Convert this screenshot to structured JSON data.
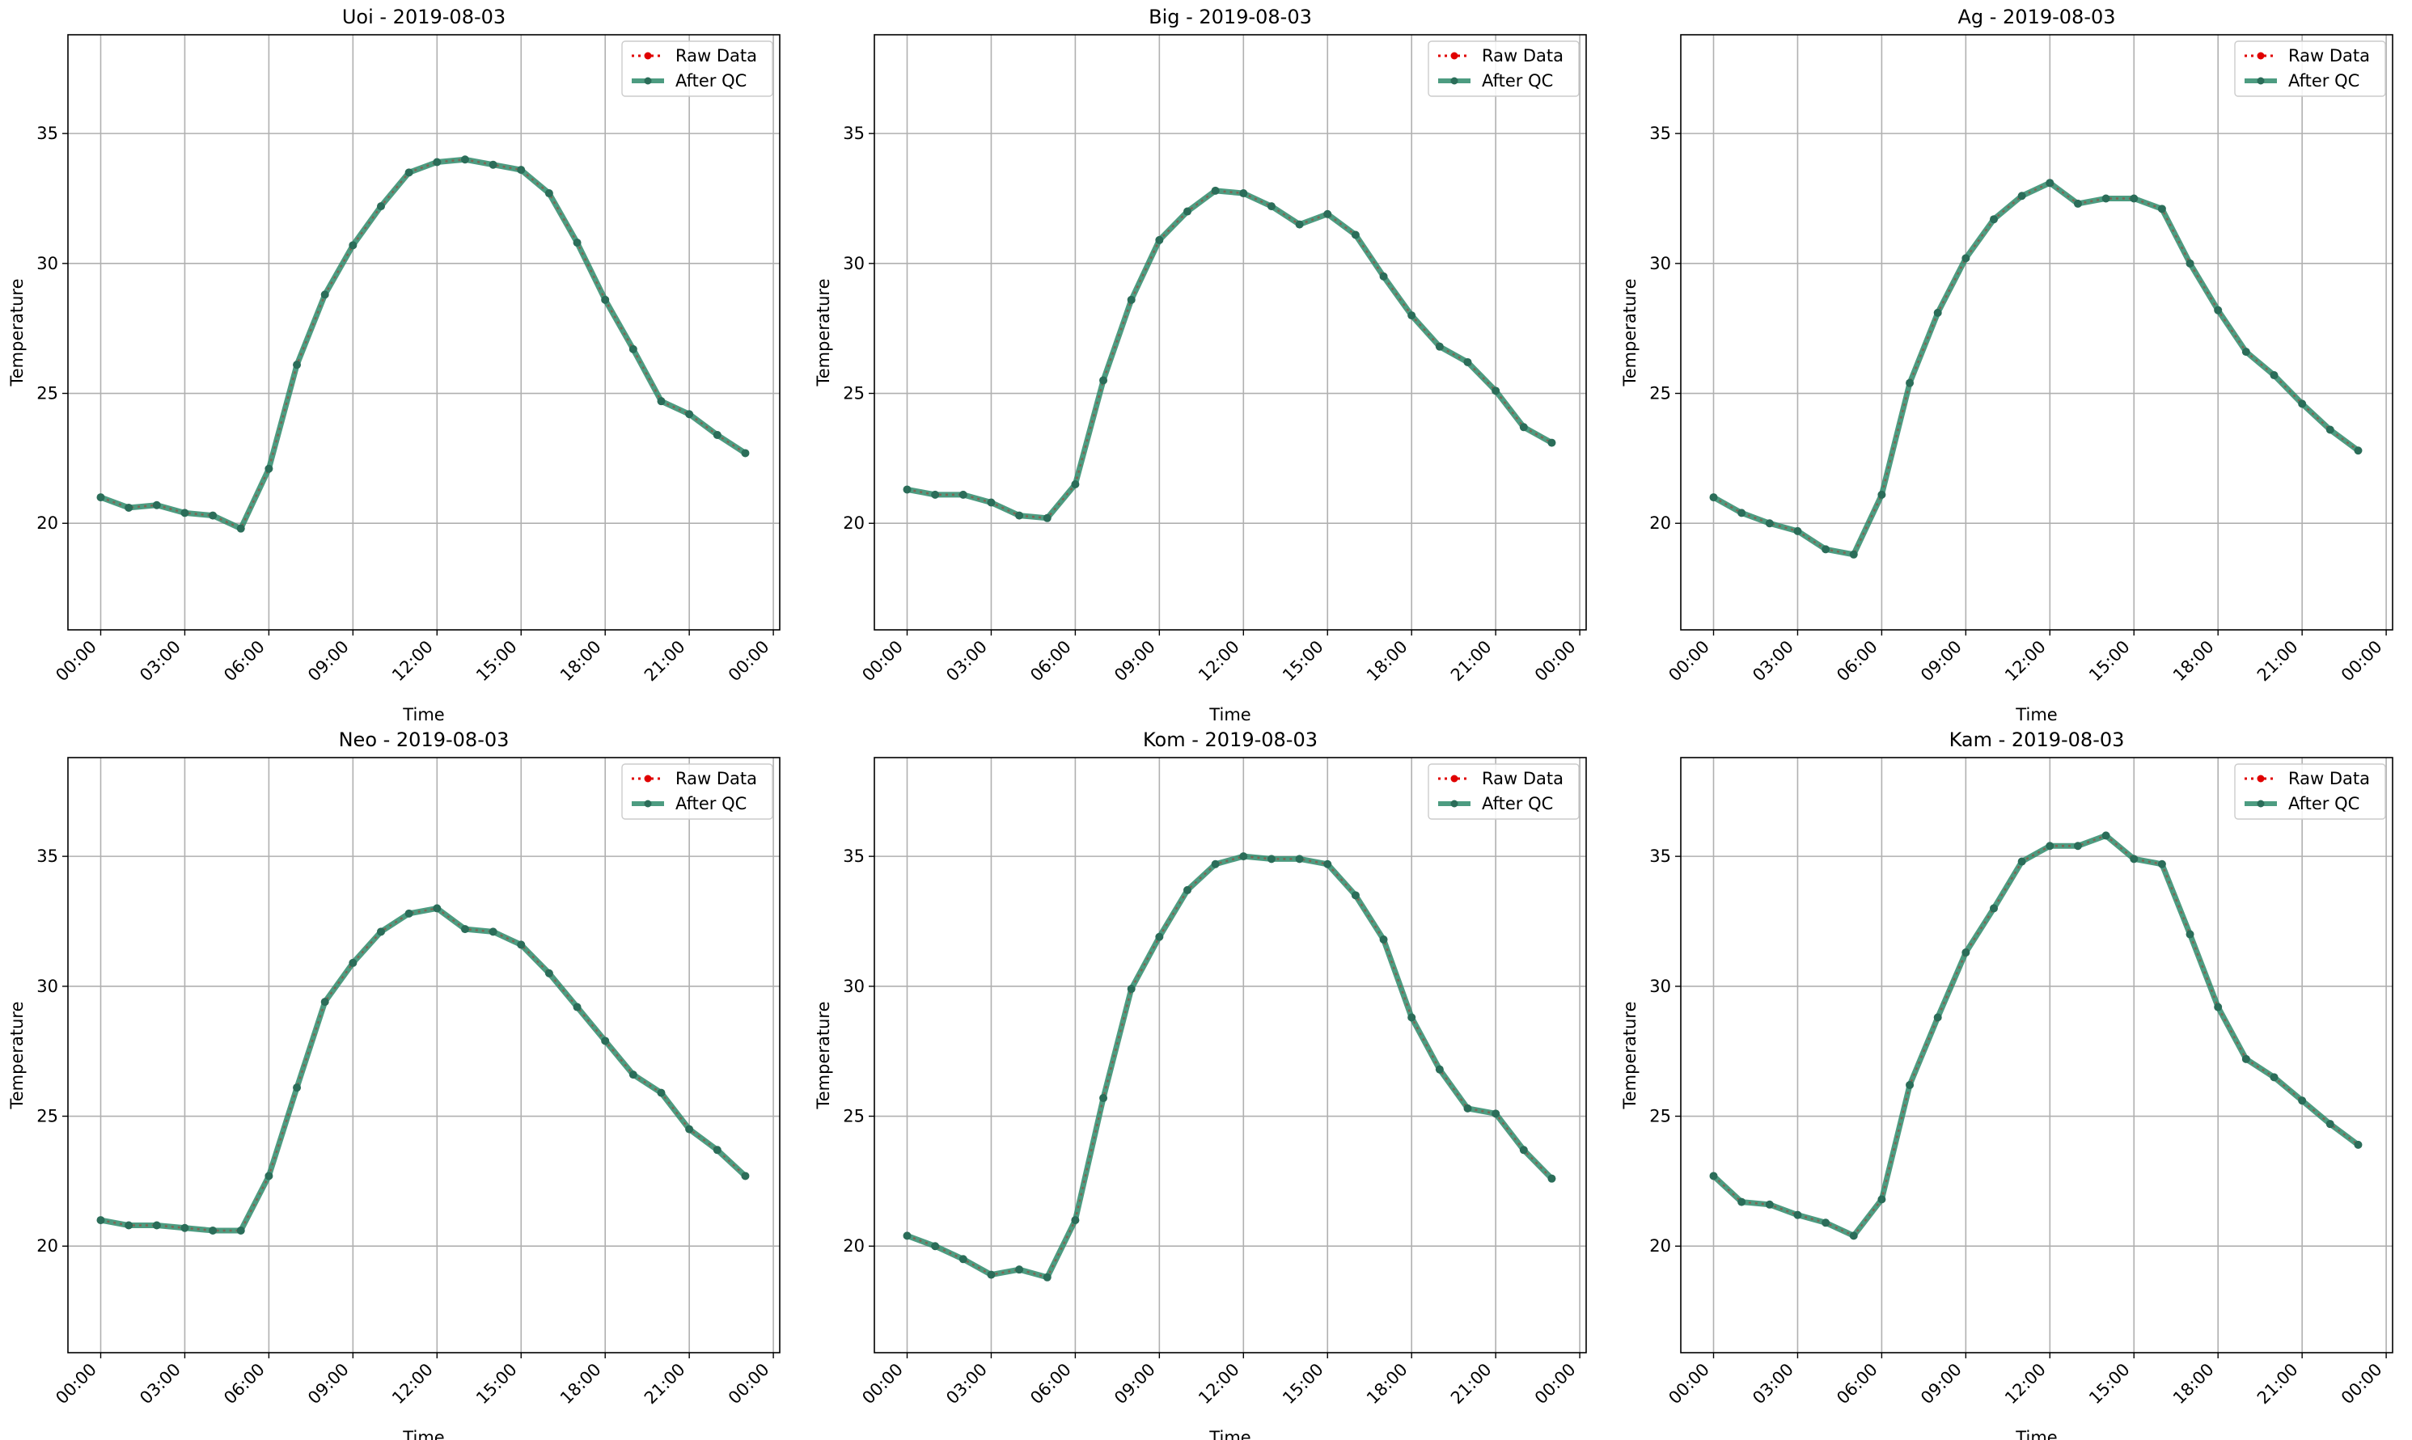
{
  "chart_data": [
    {
      "type": "line",
      "title": "Uoi - 2019-08-03",
      "xlabel": "Time",
      "ylabel": "Temperature",
      "xticks": [
        "00:00",
        "03:00",
        "06:00",
        "09:00",
        "12:00",
        "15:00",
        "18:00",
        "21:00",
        "00:00"
      ],
      "yticks": [
        "20",
        "25",
        "30",
        "35"
      ],
      "ylim": [
        15.9,
        38.8
      ],
      "grid": true,
      "legend": "top-right",
      "x_hours": [
        0,
        1,
        2,
        3,
        4,
        5,
        6,
        7,
        8,
        9,
        10,
        11,
        12,
        13,
        14,
        15,
        16,
        17,
        18,
        19,
        20,
        21,
        22,
        23
      ],
      "series": [
        {
          "name": "Raw Data",
          "values": [
            21.0,
            20.6,
            20.7,
            20.4,
            20.3,
            19.8,
            22.1,
            26.1,
            28.8,
            30.7,
            32.2,
            33.5,
            33.9,
            34.0,
            33.8,
            33.6,
            32.7,
            30.8,
            28.6,
            26.7,
            24.7,
            24.2,
            23.4,
            22.7
          ]
        },
        {
          "name": "After QC",
          "values": [
            21.0,
            20.6,
            20.7,
            20.4,
            20.3,
            19.8,
            22.1,
            26.1,
            28.8,
            30.7,
            32.2,
            33.5,
            33.9,
            34.0,
            33.8,
            33.6,
            32.7,
            30.8,
            28.6,
            26.7,
            24.7,
            24.2,
            23.4,
            22.7
          ]
        }
      ]
    },
    {
      "type": "line",
      "title": "Big - 2019-08-03",
      "xlabel": "Time",
      "ylabel": "Temperature",
      "xticks": [
        "00:00",
        "03:00",
        "06:00",
        "09:00",
        "12:00",
        "15:00",
        "18:00",
        "21:00",
        "00:00"
      ],
      "yticks": [
        "20",
        "25",
        "30",
        "35"
      ],
      "ylim": [
        15.9,
        38.8
      ],
      "grid": true,
      "legend": "top-right",
      "x_hours": [
        0,
        1,
        2,
        3,
        4,
        5,
        6,
        7,
        8,
        9,
        10,
        11,
        12,
        13,
        14,
        15,
        16,
        17,
        18,
        19,
        20,
        21,
        22,
        23
      ],
      "series": [
        {
          "name": "Raw Data",
          "values": [
            21.3,
            21.1,
            21.1,
            20.8,
            20.3,
            20.2,
            21.5,
            25.5,
            28.6,
            30.9,
            32.0,
            32.8,
            32.7,
            32.2,
            31.5,
            31.9,
            31.1,
            29.5,
            28.0,
            26.8,
            26.2,
            25.1,
            23.7,
            23.1
          ]
        },
        {
          "name": "After QC",
          "values": [
            21.3,
            21.1,
            21.1,
            20.8,
            20.3,
            20.2,
            21.5,
            25.5,
            28.6,
            30.9,
            32.0,
            32.8,
            32.7,
            32.2,
            31.5,
            31.9,
            31.1,
            29.5,
            28.0,
            26.8,
            26.2,
            25.1,
            23.7,
            23.1
          ]
        }
      ]
    },
    {
      "type": "line",
      "title": "Ag - 2019-08-03",
      "xlabel": "Time",
      "ylabel": "Temperature",
      "xticks": [
        "00:00",
        "03:00",
        "06:00",
        "09:00",
        "12:00",
        "15:00",
        "18:00",
        "21:00",
        "00:00"
      ],
      "yticks": [
        "20",
        "25",
        "30",
        "35"
      ],
      "ylim": [
        15.9,
        38.8
      ],
      "grid": true,
      "legend": "top-right",
      "x_hours": [
        0,
        1,
        2,
        3,
        4,
        5,
        6,
        7,
        8,
        9,
        10,
        11,
        12,
        13,
        14,
        15,
        16,
        17,
        18,
        19,
        20,
        21,
        22,
        23
      ],
      "series": [
        {
          "name": "Raw Data",
          "values": [
            21.0,
            20.4,
            20.0,
            19.7,
            19.0,
            18.8,
            21.1,
            25.4,
            28.1,
            30.2,
            31.7,
            32.6,
            33.1,
            32.3,
            32.5,
            32.5,
            32.1,
            30.0,
            28.2,
            26.6,
            25.7,
            24.6,
            23.6,
            22.8
          ]
        },
        {
          "name": "After QC",
          "values": [
            21.0,
            20.4,
            20.0,
            19.7,
            19.0,
            18.8,
            21.1,
            25.4,
            28.1,
            30.2,
            31.7,
            32.6,
            33.1,
            32.3,
            32.5,
            32.5,
            32.1,
            30.0,
            28.2,
            26.6,
            25.7,
            24.6,
            23.6,
            22.8
          ]
        }
      ]
    },
    {
      "type": "line",
      "title": "Neo - 2019-08-03",
      "xlabel": "Time",
      "ylabel": "Temperature",
      "xticks": [
        "00:00",
        "03:00",
        "06:00",
        "09:00",
        "12:00",
        "15:00",
        "18:00",
        "21:00",
        "00:00"
      ],
      "yticks": [
        "20",
        "25",
        "30",
        "35"
      ],
      "ylim": [
        15.9,
        38.8
      ],
      "grid": true,
      "legend": "top-right",
      "x_hours": [
        0,
        1,
        2,
        3,
        4,
        5,
        6,
        7,
        8,
        9,
        10,
        11,
        12,
        13,
        14,
        15,
        16,
        17,
        18,
        19,
        20,
        21,
        22,
        23
      ],
      "series": [
        {
          "name": "Raw Data",
          "values": [
            21.0,
            20.8,
            20.8,
            20.7,
            20.6,
            20.6,
            22.7,
            26.1,
            29.4,
            30.9,
            32.1,
            32.8,
            33.0,
            32.2,
            32.1,
            31.6,
            30.5,
            29.2,
            27.9,
            26.6,
            25.9,
            24.5,
            23.7,
            22.7
          ]
        },
        {
          "name": "After QC",
          "values": [
            21.0,
            20.8,
            20.8,
            20.7,
            20.6,
            20.6,
            22.7,
            26.1,
            29.4,
            30.9,
            32.1,
            32.8,
            33.0,
            32.2,
            32.1,
            31.6,
            30.5,
            29.2,
            27.9,
            26.6,
            25.9,
            24.5,
            23.7,
            22.7
          ]
        }
      ]
    },
    {
      "type": "line",
      "title": "Kom - 2019-08-03",
      "xlabel": "Time",
      "ylabel": "Temperature",
      "xticks": [
        "00:00",
        "03:00",
        "06:00",
        "09:00",
        "12:00",
        "15:00",
        "18:00",
        "21:00",
        "00:00"
      ],
      "yticks": [
        "20",
        "25",
        "30",
        "35"
      ],
      "ylim": [
        15.9,
        38.8
      ],
      "grid": true,
      "legend": "top-right",
      "x_hours": [
        0,
        1,
        2,
        3,
        4,
        5,
        6,
        7,
        8,
        9,
        10,
        11,
        12,
        13,
        14,
        15,
        16,
        17,
        18,
        19,
        20,
        21,
        22,
        23
      ],
      "series": [
        {
          "name": "Raw Data",
          "values": [
            20.4,
            20.0,
            19.5,
            18.9,
            19.1,
            18.8,
            21.0,
            25.7,
            29.9,
            31.9,
            33.7,
            34.7,
            35.0,
            34.9,
            34.9,
            34.7,
            33.5,
            31.8,
            28.8,
            26.8,
            25.3,
            25.1,
            23.7,
            22.6
          ]
        },
        {
          "name": "After QC",
          "values": [
            20.4,
            20.0,
            19.5,
            18.9,
            19.1,
            18.8,
            21.0,
            25.7,
            29.9,
            31.9,
            33.7,
            34.7,
            35.0,
            34.9,
            34.9,
            34.7,
            33.5,
            31.8,
            28.8,
            26.8,
            25.3,
            25.1,
            23.7,
            22.6
          ]
        }
      ]
    },
    {
      "type": "line",
      "title": "Kam - 2019-08-03",
      "xlabel": "Time",
      "ylabel": "Temperature",
      "xticks": [
        "00:00",
        "03:00",
        "06:00",
        "09:00",
        "12:00",
        "15:00",
        "18:00",
        "21:00",
        "00:00"
      ],
      "yticks": [
        "20",
        "25",
        "30",
        "35"
      ],
      "ylim": [
        15.9,
        38.8
      ],
      "grid": true,
      "legend": "top-right",
      "x_hours": [
        0,
        1,
        2,
        3,
        4,
        5,
        6,
        7,
        8,
        9,
        10,
        11,
        12,
        13,
        14,
        15,
        16,
        17,
        18,
        19,
        20,
        21,
        22,
        23
      ],
      "series": [
        {
          "name": "Raw Data",
          "values": [
            22.7,
            21.7,
            21.6,
            21.2,
            20.9,
            20.4,
            21.8,
            26.2,
            28.8,
            31.3,
            33.0,
            34.8,
            35.4,
            35.4,
            35.8,
            34.9,
            34.7,
            32.0,
            29.2,
            27.2,
            26.5,
            25.6,
            24.7,
            23.9
          ]
        },
        {
          "name": "After QC",
          "values": [
            22.7,
            21.7,
            21.6,
            21.2,
            20.9,
            20.4,
            21.8,
            26.2,
            28.8,
            31.3,
            33.0,
            34.8,
            35.4,
            35.4,
            35.8,
            34.9,
            34.7,
            32.0,
            29.2,
            27.2,
            26.5,
            25.6,
            24.7,
            23.9
          ]
        }
      ]
    }
  ],
  "colors": {
    "raw": "#e00000",
    "qc": "#2e8b6b",
    "qc_marker": "#2b6d59",
    "grid": "#b0b0b0"
  }
}
